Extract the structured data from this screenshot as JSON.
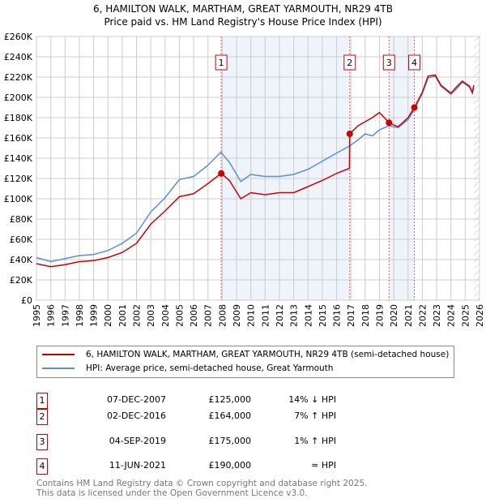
{
  "chart_data": {
    "type": "line",
    "title": "6, HAMILTON WALK, MARTHAM, GREAT YARMOUTH, NR29 4TB",
    "subtitle": "Price paid vs. HM Land Registry's House Price Index (HPI)",
    "xlim": [
      1995,
      2026
    ],
    "ylim": [
      0,
      260000
    ],
    "yticks": [
      0,
      20000,
      40000,
      60000,
      80000,
      100000,
      120000,
      140000,
      160000,
      180000,
      200000,
      220000,
      240000,
      260000
    ],
    "ytick_labels": [
      "£0",
      "£20K",
      "£40K",
      "£60K",
      "£80K",
      "£100K",
      "£120K",
      "£140K",
      "£160K",
      "£180K",
      "£200K",
      "£220K",
      "£240K",
      "£260K"
    ],
    "xtick_labels": [
      "1995",
      "1996",
      "1997",
      "1998",
      "1999",
      "2000",
      "2001",
      "2002",
      "2003",
      "2004",
      "2005",
      "2006",
      "2007",
      "2008",
      "2009",
      "2010",
      "2011",
      "2012",
      "2013",
      "2014",
      "2015",
      "2016",
      "2017",
      "2018",
      "2019",
      "2020",
      "2021",
      "2022",
      "2023",
      "2024",
      "2025",
      "2026"
    ],
    "grid": true,
    "series": [
      {
        "name": "6, HAMILTON WALK, MARTHAM, GREAT YARMOUTH, NR29 4TB (semi-detached house)",
        "color": "#cc0000",
        "x": [
          1995,
          1996,
          1997,
          1998,
          1999,
          2000,
          2001,
          2002,
          2003,
          2004,
          2005,
          2006,
          2007,
          2007.93,
          2008.5,
          2009.3,
          2010,
          2011,
          2012,
          2013,
          2014,
          2015,
          2016,
          2016.9,
          2016.92,
          2017.5,
          2018,
          2018.5,
          2019,
          2019.67,
          2020.3,
          2021,
          2021.44,
          2022,
          2022.4,
          2022.9,
          2023.3,
          2024,
          2024.3,
          2024.8,
          2025.3,
          2025.5,
          2025.6
        ],
        "y": [
          36000,
          33000,
          35000,
          38000,
          39000,
          42000,
          47000,
          56000,
          75000,
          88000,
          102000,
          105000,
          115000,
          125000,
          118000,
          100000,
          106000,
          104000,
          106000,
          106000,
          112000,
          118000,
          125000,
          130000,
          164000,
          172000,
          176000,
          180000,
          185000,
          175000,
          171000,
          180000,
          190000,
          205000,
          221000,
          222000,
          212000,
          204000,
          209000,
          216000,
          211000,
          205000,
          212000
        ]
      },
      {
        "name": "HPI: Average price, semi-detached house, Great Yarmouth",
        "color": "#5b8fd0",
        "x": [
          1995,
          1996,
          1997,
          1998,
          1999,
          2000,
          2001,
          2002,
          2003,
          2004,
          2005,
          2006,
          2007,
          2007.9,
          2008.5,
          2009.3,
          2010,
          2011,
          2012,
          2013,
          2014,
          2015,
          2016,
          2016.9,
          2017.5,
          2018,
          2018.5,
          2019,
          2019.67,
          2020.3,
          2021,
          2021.44,
          2022,
          2022.4,
          2022.9,
          2023.3,
          2024,
          2024.3,
          2024.8,
          2025.3,
          2025.5,
          2025.6
        ],
        "y": [
          42000,
          38000,
          41000,
          44000,
          45000,
          49000,
          56000,
          66000,
          87000,
          101000,
          119000,
          122000,
          133000,
          146000,
          136000,
          117000,
          124000,
          122000,
          122000,
          124000,
          129000,
          137000,
          145000,
          152000,
          158000,
          164000,
          162000,
          168000,
          172000,
          170000,
          178000,
          188000,
          204000,
          219000,
          221000,
          211000,
          203000,
          207000,
          215000,
          210000,
          204000,
          210000
        ]
      }
    ],
    "sales": [
      {
        "label": "1",
        "x": 2007.93,
        "y": 125000,
        "date": "07-DEC-2007",
        "price": "£125,000",
        "hpi": "14% ↓ HPI"
      },
      {
        "label": "2",
        "x": 2016.92,
        "y": 164000,
        "date": "02-DEC-2016",
        "price": "£164,000",
        "hpi": "7% ↑ HPI"
      },
      {
        "label": "3",
        "x": 2019.67,
        "y": 175000,
        "date": "04-SEP-2019",
        "price": "£175,000",
        "hpi": "1% ↑ HPI"
      },
      {
        "label": "4",
        "x": 2021.44,
        "y": 190000,
        "date": "11-JUN-2021",
        "price": "£190,000",
        "hpi": "≈ HPI"
      }
    ],
    "shaded": [
      [
        2007.93,
        2016.92
      ],
      [
        2019.67,
        2021.44
      ]
    ],
    "hatch_from": 2025.6
  },
  "footer": {
    "line1": "Contains HM Land Registry data © Crown copyright and database right 2025.",
    "line2": "This data is licensed under the Open Government Licence v3.0."
  }
}
